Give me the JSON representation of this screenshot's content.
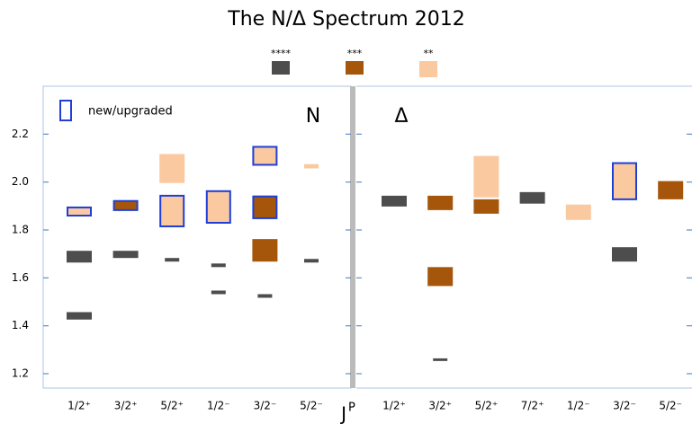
{
  "chart_data": {
    "type": "range",
    "title": "The N/Δ Spectrum 2012",
    "x_label": {
      "base": "J",
      "sup": "P"
    },
    "ylim": [
      1.14,
      2.4
    ],
    "yticks": [
      1.2,
      1.4,
      1.6,
      1.8,
      {
        "value": 2,
        "label": "2.0"
      },
      2.2
    ],
    "ratings": [
      {
        "name": "****",
        "color": "#4d4d4d"
      },
      {
        "name": "***",
        "color": "#a5560a"
      },
      {
        "name": "**",
        "color": "#fbc9a0"
      }
    ],
    "new_label": "new/upgraded",
    "new_color": "#1f3fd6",
    "panels": [
      {
        "label": "N",
        "categories": [
          "1/2⁺",
          "3/2⁺",
          "5/2⁺",
          "1/2⁻",
          "3/2⁻",
          "5/2⁻"
        ],
        "boxes": [
          {
            "category": 0,
            "low": 1.664,
            "high": 1.713,
            "rating": 0,
            "new": false
          },
          {
            "category": 0,
            "low": 1.426,
            "high": 1.457,
            "rating": 0,
            "new": false
          },
          {
            "category": 0,
            "low": 1.86,
            "high": 1.894,
            "rating": 2,
            "new": true
          },
          {
            "category": 1,
            "low": 1.683,
            "high": 1.713,
            "rating": 0,
            "new": false
          },
          {
            "category": 1,
            "low": 1.883,
            "high": 1.921,
            "rating": 1,
            "new": true
          },
          {
            "category": 2,
            "low": 1.996,
            "high": 2.117,
            "rating": 2,
            "new": false
          },
          {
            "category": 2,
            "low": 1.815,
            "high": 1.943,
            "rating": 2,
            "new": true
          },
          {
            "category": 2,
            "low": 1.668,
            "high": 1.683,
            "rating": 0,
            "new": false
          },
          {
            "category": 3,
            "low": 1.645,
            "high": 1.66,
            "rating": 0,
            "new": false
          },
          {
            "category": 3,
            "low": 1.532,
            "high": 1.547,
            "rating": 0,
            "new": false
          },
          {
            "category": 3,
            "low": 1.83,
            "high": 1.962,
            "rating": 2,
            "new": true
          },
          {
            "category": 4,
            "low": 2.072,
            "high": 2.147,
            "rating": 2,
            "new": true
          },
          {
            "category": 4,
            "low": 1.849,
            "high": 1.94,
            "rating": 1,
            "new": true
          },
          {
            "category": 4,
            "low": 1.668,
            "high": 1.762,
            "rating": 1,
            "new": false
          },
          {
            "category": 4,
            "low": 1.517,
            "high": 1.532,
            "rating": 0,
            "new": false
          },
          {
            "category": 5,
            "low": 2.057,
            "high": 2.075,
            "rating": 2,
            "new": false
          },
          {
            "category": 5,
            "low": 1.664,
            "high": 1.679,
            "rating": 0,
            "new": false
          }
        ]
      },
      {
        "label": "Δ",
        "categories": [
          "1/2⁺",
          "3/2⁺",
          "5/2⁺",
          "7/2⁺",
          "1/2⁻",
          "3/2⁻",
          "5/2⁻"
        ],
        "boxes": [
          {
            "category": 0,
            "low": 1.898,
            "high": 1.943,
            "rating": 0,
            "new": false
          },
          {
            "category": 1,
            "low": 1.883,
            "high": 1.943,
            "rating": 1,
            "new": false
          },
          {
            "category": 1,
            "low": 1.566,
            "high": 1.645,
            "rating": 1,
            "new": false
          },
          {
            "category": 1,
            "low": 1.253,
            "high": 1.264,
            "rating": 0,
            "new": false
          },
          {
            "category": 2,
            "low": 1.936,
            "high": 2.109,
            "rating": 2,
            "new": false
          },
          {
            "category": 2,
            "low": 1.868,
            "high": 1.928,
            "rating": 1,
            "new": false
          },
          {
            "category": 3,
            "low": 1.91,
            "high": 1.958,
            "rating": 0,
            "new": false
          },
          {
            "category": 4,
            "low": 1.842,
            "high": 1.906,
            "rating": 2,
            "new": false
          },
          {
            "category": 5,
            "low": 1.928,
            "high": 2.079,
            "rating": 2,
            "new": true
          },
          {
            "category": 5,
            "low": 1.668,
            "high": 1.728,
            "rating": 0,
            "new": false
          },
          {
            "category": 6,
            "low": 1.928,
            "high": 2.004,
            "rating": 1,
            "new": false
          }
        ]
      }
    ]
  }
}
